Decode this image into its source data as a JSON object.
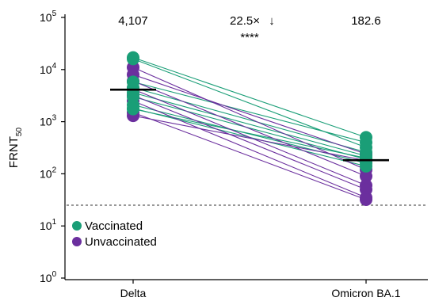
{
  "chart_data": {
    "type": "scatter",
    "subtype": "paired dot plot",
    "ylabel_main": "FRNT",
    "ylabel_sub": "50",
    "yscale": "log",
    "ylim": [
      1,
      100000
    ],
    "y_ticks": [
      {
        "value": 1,
        "base": "10",
        "exp": "0"
      },
      {
        "value": 10,
        "base": "10",
        "exp": "1"
      },
      {
        "value": 100,
        "base": "10",
        "exp": "2"
      },
      {
        "value": 1000,
        "base": "10",
        "exp": "3"
      },
      {
        "value": 10000,
        "base": "10",
        "exp": "4"
      },
      {
        "value": 100000,
        "base": "10",
        "exp": "5"
      }
    ],
    "categories": [
      "Delta",
      "Omicron BA.1"
    ],
    "medians": [
      4107,
      182.6
    ],
    "median_labels": [
      "4,107",
      "182.6"
    ],
    "fold_change_label": "22.5×",
    "fold_arrow": "↓",
    "significance_label": "****",
    "limit_of_detection": 25,
    "groups": [
      {
        "name": "Vaccinated",
        "color": "#1a9e77"
      },
      {
        "name": "Unvaccinated",
        "color": "#6b2f9e"
      }
    ],
    "pairs": [
      {
        "group": "Vaccinated",
        "delta": 17000,
        "omicron": 500
      },
      {
        "group": "Vaccinated",
        "delta": 16000,
        "omicron": 320
      },
      {
        "group": "Vaccinated",
        "delta": 5800,
        "omicron": 400
      },
      {
        "group": "Vaccinated",
        "delta": 4500,
        "omicron": 260
      },
      {
        "group": "Vaccinated",
        "delta": 3600,
        "omicron": 220
      },
      {
        "group": "Vaccinated",
        "delta": 3000,
        "omicron": 190
      },
      {
        "group": "Vaccinated",
        "delta": 2100,
        "omicron": 160
      },
      {
        "group": "Vaccinated",
        "delta": 1800,
        "omicron": 140
      },
      {
        "group": "Vaccinated",
        "delta": 1750,
        "omicron": 200
      },
      {
        "group": "Unvaccinated",
        "delta": 11000,
        "omicron": 120
      },
      {
        "group": "Unvaccinated",
        "delta": 8000,
        "omicron": 240
      },
      {
        "group": "Unvaccinated",
        "delta": 6000,
        "omicron": 90
      },
      {
        "group": "Unvaccinated",
        "delta": 4200,
        "omicron": 60
      },
      {
        "group": "Unvaccinated",
        "delta": 3200,
        "omicron": 50
      },
      {
        "group": "Unvaccinated",
        "delta": 2500,
        "omicron": 35
      },
      {
        "group": "Unvaccinated",
        "delta": 1500,
        "omicron": 32
      },
      {
        "group": "Unvaccinated",
        "delta": 1300,
        "omicron": 180
      }
    ],
    "legend_position": "bottom-left",
    "grid": false
  }
}
